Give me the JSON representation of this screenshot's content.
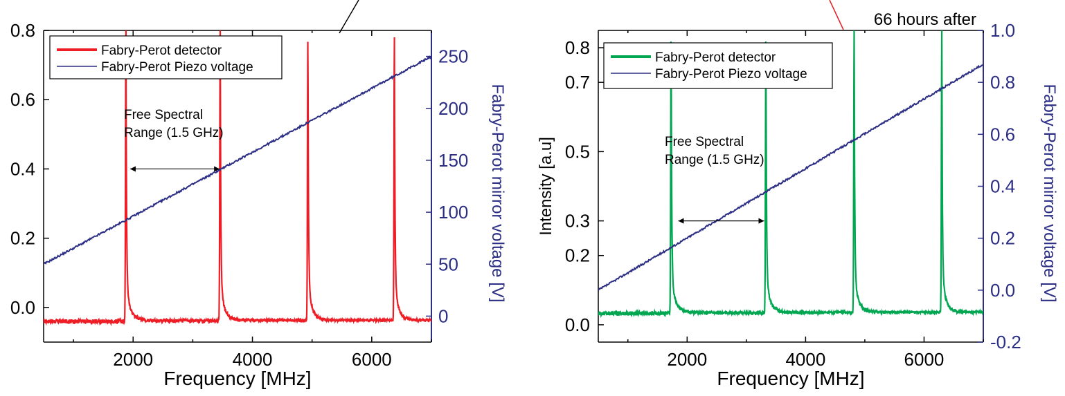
{
  "chart_data": [
    {
      "type": "line",
      "xlabel": "Frequency [MHz]",
      "ylabel": "",
      "y2label": "Fabry-Perot mirror voltage [V]",
      "xlim": [
        500,
        7000
      ],
      "ylim": [
        -0.1,
        0.8
      ],
      "y2lim": [
        -25,
        275
      ],
      "xticks": [
        "2000",
        "4000",
        "6000"
      ],
      "xtick_values": [
        2000,
        4000,
        6000
      ],
      "yticks": [
        "0.0",
        "0.2",
        "0.4",
        "0.6",
        "0.8"
      ],
      "ytick_values": [
        0,
        0.2,
        0.4,
        0.6,
        0.8
      ],
      "y2ticks": [
        "0",
        "50",
        "100",
        "150",
        "200",
        "250"
      ],
      "y2tick_values": [
        0,
        50,
        100,
        150,
        200,
        250
      ],
      "legend_position": "top-left",
      "series": [
        {
          "name": "Fabry-Perot detector",
          "axis": "left",
          "color": "#ee1c24",
          "baseline": -0.04,
          "peaks": [
            {
              "x": 1880,
              "y": 0.8
            },
            {
              "x": 3460,
              "y": 0.8
            },
            {
              "x": 4930,
              "y": 0.8
            },
            {
              "x": 6380,
              "y": 0.78
            }
          ]
        },
        {
          "name": "Fabry-Perot Piezo voltage",
          "axis": "right",
          "color": "#2b2e84",
          "x": [
            500,
            7000
          ],
          "y": [
            50,
            250
          ]
        }
      ],
      "annotation": {
        "text_line1": "Free Spectral",
        "text_line2": "Range (1.5 GHz)",
        "arrow_x": [
          1950,
          3450
        ],
        "arrow_y": 0.4
      }
    },
    {
      "type": "line",
      "xlabel": "Frequency [MHz]",
      "ylabel": "Intensity [a.u]",
      "y2label": "Fabry-Perot mirror voltage [V]",
      "xlim": [
        500,
        7000
      ],
      "ylim": [
        -0.05,
        0.85
      ],
      "y2lim": [
        -0.2,
        1.0
      ],
      "xticks": [
        "2000",
        "4000",
        "6000"
      ],
      "xtick_values": [
        2000,
        4000,
        6000
      ],
      "yticks": [
        "0.0",
        "0.2",
        "0.3",
        "0.5",
        "0.7",
        "0.8"
      ],
      "ytick_values": [
        0,
        0.2,
        0.3,
        0.5,
        0.7,
        0.8
      ],
      "y2ticks": [
        "-0.2",
        "0.0",
        "0.2",
        "0.4",
        "0.6",
        "0.8",
        "1.0"
      ],
      "y2tick_values": [
        -0.2,
        0,
        0.2,
        0.4,
        0.6,
        0.8,
        1.0
      ],
      "legend_position": "top-left",
      "series": [
        {
          "name": "Fabry-Perot detector",
          "axis": "left",
          "color": "#00a650",
          "baseline": 0.033,
          "peaks": [
            {
              "x": 1730,
              "y": 0.85
            },
            {
              "x": 3330,
              "y": 0.85
            },
            {
              "x": 4820,
              "y": 0.85
            },
            {
              "x": 6300,
              "y": 0.85
            }
          ]
        },
        {
          "name": "Fabry-Perot Piezo voltage",
          "axis": "right",
          "color": "#2b2e84",
          "x": [
            500,
            7000
          ],
          "y": [
            0.0,
            0.87
          ]
        }
      ],
      "annotation": {
        "text_line1": "Free Spectral",
        "text_line2": "Range (1.5 GHz)",
        "arrow_x": [
          1850,
          3300
        ],
        "arrow_y": 0.3
      },
      "corner_label": "66 hours after"
    }
  ]
}
